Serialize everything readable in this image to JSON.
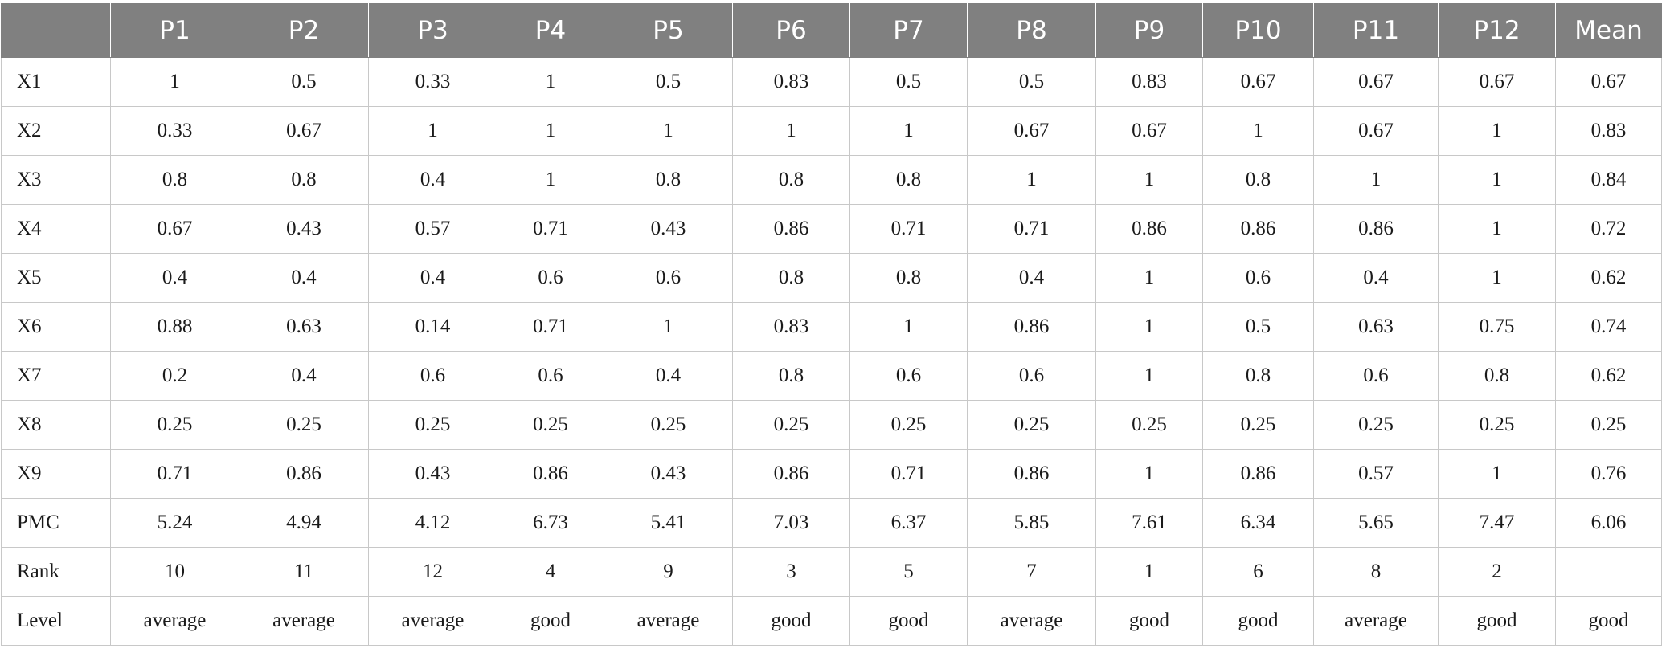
{
  "table": {
    "headers": [
      "",
      "P1",
      "P2",
      "P3",
      "P4",
      "P5",
      "P6",
      "P7",
      "P8",
      "P9",
      "P10",
      "P11",
      "P12",
      "Mean"
    ],
    "rows": [
      {
        "label": "X1",
        "cells": [
          "1",
          "0.5",
          "0.33",
          "1",
          "0.5",
          "0.83",
          "0.5",
          "0.5",
          "0.83",
          "0.67",
          "0.67",
          "0.67",
          "0.67"
        ]
      },
      {
        "label": "X2",
        "cells": [
          "0.33",
          "0.67",
          "1",
          "1",
          "1",
          "1",
          "1",
          "0.67",
          "0.67",
          "1",
          "0.67",
          "1",
          "0.83"
        ]
      },
      {
        "label": "X3",
        "cells": [
          "0.8",
          "0.8",
          "0.4",
          "1",
          "0.8",
          "0.8",
          "0.8",
          "1",
          "1",
          "0.8",
          "1",
          "1",
          "0.84"
        ]
      },
      {
        "label": "X4",
        "cells": [
          "0.67",
          "0.43",
          "0.57",
          "0.71",
          "0.43",
          "0.86",
          "0.71",
          "0.71",
          "0.86",
          "0.86",
          "0.86",
          "1",
          "0.72"
        ]
      },
      {
        "label": "X5",
        "cells": [
          "0.4",
          "0.4",
          "0.4",
          "0.6",
          "0.6",
          "0.8",
          "0.8",
          "0.4",
          "1",
          "0.6",
          "0.4",
          "1",
          "0.62"
        ]
      },
      {
        "label": "X6",
        "cells": [
          "0.88",
          "0.63",
          "0.14",
          "0.71",
          "1",
          "0.83",
          "1",
          "0.86",
          "1",
          "0.5",
          "0.63",
          "0.75",
          "0.74"
        ]
      },
      {
        "label": "X7",
        "cells": [
          "0.2",
          "0.4",
          "0.6",
          "0.6",
          "0.4",
          "0.8",
          "0.6",
          "0.6",
          "1",
          "0.8",
          "0.6",
          "0.8",
          "0.62"
        ]
      },
      {
        "label": "X8",
        "cells": [
          "0.25",
          "0.25",
          "0.25",
          "0.25",
          "0.25",
          "0.25",
          "0.25",
          "0.25",
          "0.25",
          "0.25",
          "0.25",
          "0.25",
          "0.25"
        ]
      },
      {
        "label": "X9",
        "cells": [
          "0.71",
          "0.86",
          "0.43",
          "0.86",
          "0.43",
          "0.86",
          "0.71",
          "0.86",
          "1",
          "0.86",
          "0.57",
          "1",
          "0.76"
        ]
      },
      {
        "label": "PMC",
        "cells": [
          "5.24",
          "4.94",
          "4.12",
          "6.73",
          "5.41",
          "7.03",
          "6.37",
          "5.85",
          "7.61",
          "6.34",
          "5.65",
          "7.47",
          "6.06"
        ]
      },
      {
        "label": "Rank",
        "cells": [
          "10",
          "11",
          "12",
          "4",
          "9",
          "3",
          "5",
          "7",
          "1",
          "6",
          "8",
          "2",
          ""
        ]
      },
      {
        "label": "Level",
        "cells": [
          "average",
          "average",
          "average",
          "good",
          "average",
          "good",
          "good",
          "average",
          "good",
          "good",
          "average",
          "good",
          "good"
        ]
      }
    ]
  },
  "colors": {
    "header_background": "#808080",
    "header_text": "#ffffff",
    "grid_line": "#c8c8c8",
    "body_text": "#1a1a1a"
  }
}
